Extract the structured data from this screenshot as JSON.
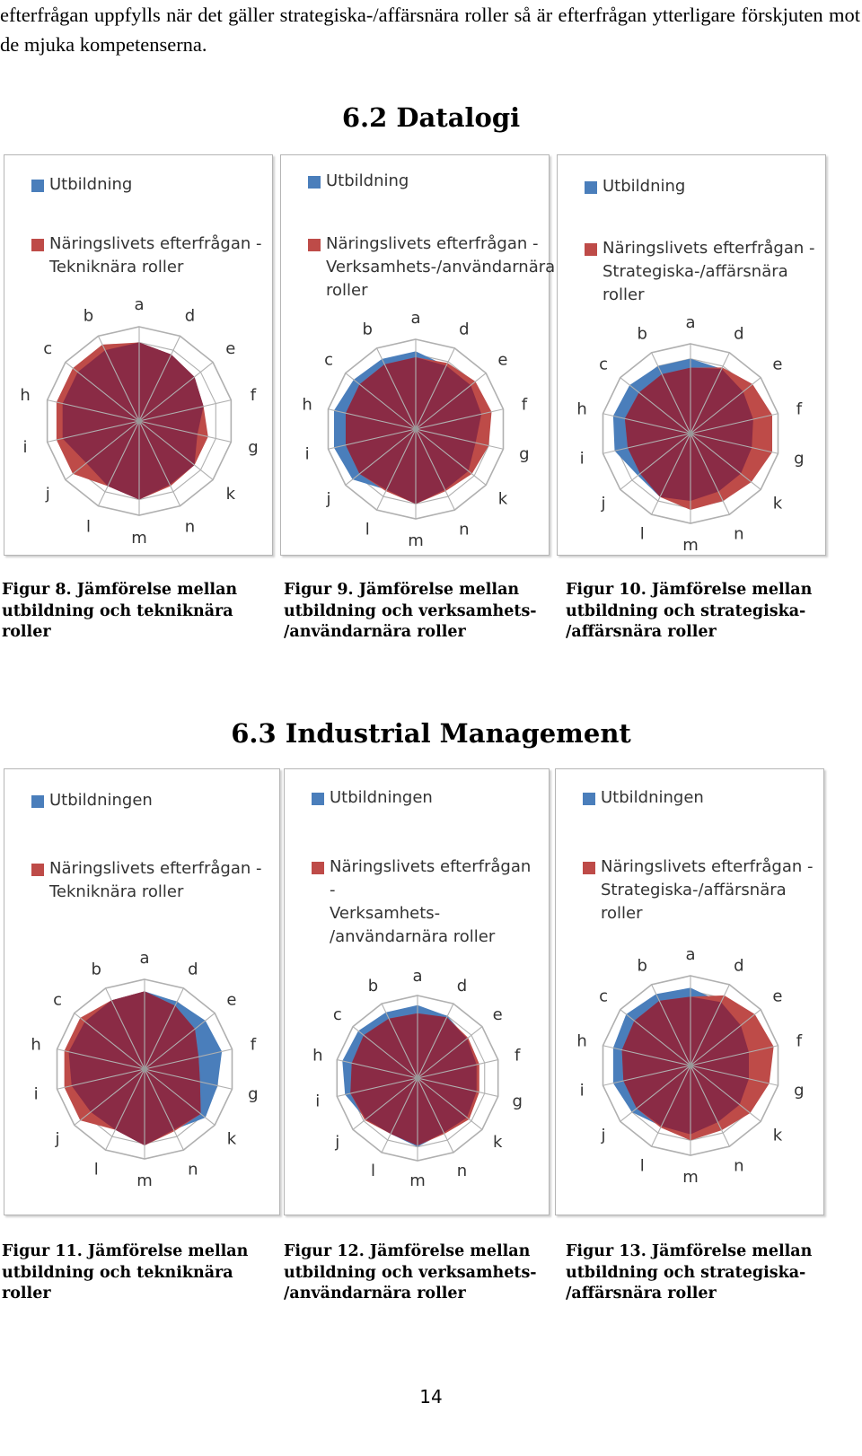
{
  "intro_text": "efterfrågan uppfylls när det gäller strategiska-/affärsnära roller så är efterfrågan ytterligare förskjuten mot de mjuka kompetenserna.",
  "page_number": "14",
  "colors": {
    "education": "#4a7ebb",
    "demand": "#be4b48",
    "overlap": "#8a2b45",
    "grid": "#b0b0b0"
  },
  "sections": [
    {
      "title": "6.2 Datalogi",
      "figures": [
        {
          "caption": "Figur 8. Jämförelse mellan\nutbildning och tekniknära\nroller",
          "legend": [
            "Utbildning",
            "Näringslivets efterfrågan -\nTekniknära roller"
          ],
          "chart_data": {
            "type": "radar",
            "categories": [
              "a",
              "b",
              "c",
              "d",
              "e",
              "f",
              "g",
              "h",
              "i",
              "j",
              "k",
              "l",
              "m",
              "n"
            ],
            "axis_order_clockwise": [
              "a",
              "d",
              "e",
              "f",
              "g",
              "k",
              "n",
              "m",
              "l",
              "j",
              "i",
              "h",
              "c",
              "b"
            ],
            "series": [
              {
                "name": "Utbildning",
                "values": [
                  5,
                  5,
                  5,
                  4.7,
                  4.5,
                  4.2,
                  3.8,
                  5,
                  5,
                  4.3,
                  4.5,
                  4.6,
                  5,
                  4.5
                ]
              },
              {
                "name": "Näringslivets efterfrågan - Tekniknära roller",
                "values": [
                  5,
                  5.4,
                  5.4,
                  4.7,
                  4.5,
                  4.2,
                  4.5,
                  5.4,
                  5.4,
                  5.4,
                  4.5,
                  4.6,
                  5,
                  4.6
                ]
              }
            ]
          }
        },
        {
          "caption": "Figur 9. Jämförelse mellan\nutbildning och verksamhets-\n/användarnära roller",
          "legend": [
            "Utbildning",
            "Näringslivets efterfrågan -\nVerksamhets-/användarnära\nroller"
          ],
          "chart_data": {
            "type": "radar",
            "categories": [
              "a",
              "b",
              "c",
              "d",
              "e",
              "f",
              "g",
              "h",
              "i",
              "j",
              "k",
              "l",
              "m",
              "n"
            ],
            "axis_order_clockwise": [
              "a",
              "d",
              "e",
              "f",
              "g",
              "k",
              "n",
              "m",
              "l",
              "j",
              "i",
              "h",
              "c",
              "b"
            ],
            "series": [
              {
                "name": "Utbildning",
                "values": [
                  5.2,
                  5.2,
                  5.3,
                  4.7,
                  4.7,
                  4.5,
                  4.1,
                  5.6,
                  5.6,
                  5.4,
                  4.5,
                  4.5,
                  5,
                  4.5
                ]
              },
              {
                "name": "Näringslivets efterfrågan - Verksamhets-/användarnära roller",
                "values": [
                  4.8,
                  4.8,
                  4.8,
                  4.9,
                  5.1,
                  5.2,
                  5,
                  4.8,
                  4.8,
                  4.8,
                  4.8,
                  4.6,
                  5,
                  4.6
                ]
              }
            ]
          }
        },
        {
          "caption": "Figur 10. Jämförelse mellan\nutbildning och strategiska-\n/affärsnära roller",
          "legend": [
            "Utbildning",
            "Näringslivets efterfrågan -\nStrategiska-/affärsnära roller"
          ],
          "chart_data": {
            "type": "radar",
            "categories": [
              "a",
              "b",
              "c",
              "d",
              "e",
              "f",
              "g",
              "h",
              "i",
              "j",
              "k",
              "l",
              "m",
              "n"
            ],
            "axis_order_clockwise": [
              "a",
              "d",
              "e",
              "f",
              "g",
              "k",
              "n",
              "m",
              "l",
              "j",
              "i",
              "h",
              "c",
              "b"
            ],
            "series": [
              {
                "name": "Utbildning",
                "values": [
                  5,
                  5,
                  5.2,
                  4.8,
                  4.5,
                  4.3,
                  4.2,
                  5.3,
                  5.2,
                  4.5,
                  4.3,
                  4.7,
                  4.5,
                  4.3
                ]
              },
              {
                "name": "Näringslivets efterfrågan - Strategiska-/affärsnära roller",
                "values": [
                  4.4,
                  4.4,
                  4.4,
                  4.9,
                  5.3,
                  5.6,
                  5.6,
                  4.5,
                  4.3,
                  4.3,
                  5.2,
                  4.7,
                  5.1,
                  5
                ]
              }
            ]
          }
        }
      ]
    },
    {
      "title": "6.3 Industrial Management",
      "figures": [
        {
          "caption": "Figur 11. Jämförelse mellan\nutbildning och tekniknära\nroller",
          "legend": [
            "Utbildningen",
            "Näringslivets efterfrågan -\nTekniknära roller"
          ],
          "chart_data": {
            "type": "radar",
            "categories": [
              "a",
              "b",
              "c",
              "d",
              "e",
              "f",
              "g",
              "h",
              "i",
              "j",
              "k",
              "l",
              "m",
              "n"
            ],
            "axis_order_clockwise": [
              "a",
              "d",
              "e",
              "f",
              "g",
              "k",
              "n",
              "m",
              "l",
              "j",
              "i",
              "h",
              "c",
              "b"
            ],
            "series": [
              {
                "name": "Utbildningen",
                "values": [
                  5.2,
                  5.1,
                  5.1,
                  5,
                  5.2,
                  5.3,
                  5,
                  5.2,
                  5,
                  4.6,
                  5.2,
                  4.5,
                  5.1,
                  4.5
                ]
              },
              {
                "name": "Näringslivets efterfrågan - Tekniknära roller",
                "values": [
                  5.2,
                  5.1,
                  5.5,
                  4.7,
                  4.3,
                  3.7,
                  3.8,
                  5.5,
                  5.5,
                  5.5,
                  4.8,
                  4.5,
                  5.1,
                  4.6
                ]
              }
            ]
          }
        },
        {
          "caption": "Figur 12. Jämförelse mellan\nutbildning och verksamhets-\n/användarnära roller",
          "legend": [
            "Utbildningen",
            "Näringslivets efterfrågan -\nVerksamhets-\n/användarnära roller"
          ],
          "chart_data": {
            "type": "radar",
            "categories": [
              "a",
              "b",
              "c",
              "d",
              "e",
              "f",
              "g",
              "h",
              "i",
              "j",
              "k",
              "l",
              "m",
              "n"
            ],
            "axis_order_clockwise": [
              "a",
              "d",
              "e",
              "f",
              "g",
              "k",
              "n",
              "m",
              "l",
              "j",
              "i",
              "h",
              "c",
              "b"
            ],
            "series": [
              {
                "name": "Utbildningen",
                "values": [
                  5.3,
                  5.3,
                  5.5,
                  5,
                  4.6,
                  4.4,
                  4.4,
                  5.6,
                  5.4,
                  4.8,
                  4.6,
                  4.5,
                  5,
                  4.4
                ]
              },
              {
                "name": "Näringslivets efterfrågan - Verksamhets-/användarnära roller",
                "values": [
                  4.7,
                  4.8,
                  5,
                  4.9,
                  4.7,
                  4.6,
                  4.6,
                  4.9,
                  5,
                  4.9,
                  4.8,
                  4.5,
                  4.9,
                  4.5
                ]
              }
            ]
          }
        },
        {
          "caption": "Figur 13. Jämförelse mellan\nutbildning och strategiska-\n/affärsnära roller",
          "legend": [
            "Utbildningen",
            "Näringslivets efterfrågan -\nStrategiska-/affärsnära\nroller"
          ],
          "chart_data": {
            "type": "radar",
            "categories": [
              "a",
              "b",
              "c",
              "d",
              "e",
              "f",
              "g",
              "h",
              "i",
              "j",
              "k",
              "l",
              "m",
              "n"
            ],
            "axis_order_clockwise": [
              "a",
              "d",
              "e",
              "f",
              "g",
              "k",
              "n",
              "m",
              "l",
              "j",
              "i",
              "h",
              "c",
              "b"
            ],
            "series": [
              {
                "name": "Utbildningen",
                "values": [
                  5.2,
                  5.3,
                  5.5,
                  4.7,
                  4.3,
                  4,
                  4,
                  5.3,
                  5.3,
                  5,
                  4.2,
                  4.5,
                  4.6,
                  4.2
                ]
              },
              {
                "name": "Näringslivets efterfrågan - Strategiska-/affärsnära roller",
                "values": [
                  4.6,
                  4.8,
                  4.8,
                  5.2,
                  5.5,
                  5.7,
                  5.4,
                  4.7,
                  4.6,
                  4.6,
                  5.1,
                  4.6,
                  5,
                  4.8
                ]
              }
            ]
          }
        }
      ]
    }
  ]
}
